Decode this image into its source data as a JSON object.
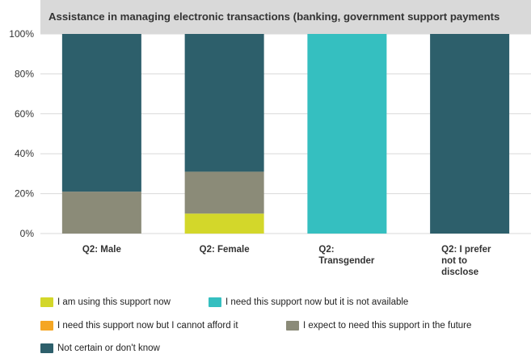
{
  "chart_data": {
    "type": "bar",
    "stacked": true,
    "percent": true,
    "title": "Assistance in managing electronic transactions (banking, government support payments",
    "categories": [
      "Q2: Male",
      "Q2: Female",
      "Q2: Transgender",
      "Q2: I prefer not to disclose"
    ],
    "y_ticks": [
      "0%",
      "20%",
      "40%",
      "60%",
      "80%",
      "100%"
    ],
    "ylim": [
      0,
      100
    ],
    "grid": true,
    "legend_position": "bottom",
    "series": [
      {
        "name": "I am using this support now",
        "color": "#d3d72a",
        "values": [
          0,
          10,
          0,
          0
        ]
      },
      {
        "name": "I need this support now but it is not available",
        "color": "#35bfc0",
        "values": [
          0,
          0,
          100,
          0
        ]
      },
      {
        "name": "I need this support now but I cannot afford it",
        "color": "#f5a623",
        "values": [
          0,
          0,
          0,
          0
        ]
      },
      {
        "name": "I expect to need this support in the future",
        "color": "#8b8b78",
        "values": [
          21,
          21,
          0,
          0
        ]
      },
      {
        "name": "Not certain or don't know",
        "color": "#2d5f6b",
        "values": [
          79,
          69,
          0,
          100
        ]
      }
    ]
  }
}
